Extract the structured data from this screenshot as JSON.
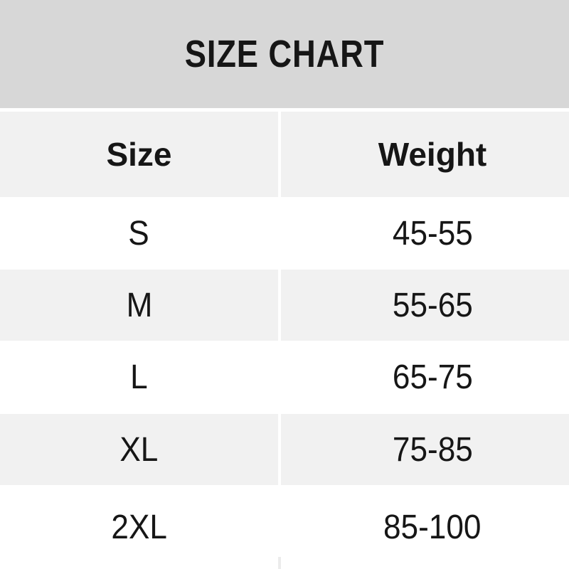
{
  "chart_data": {
    "type": "table",
    "title": "SIZE CHART",
    "columns": [
      "Size",
      "Weight"
    ],
    "rows": [
      {
        "size": "S",
        "weight": "45-55"
      },
      {
        "size": "M",
        "weight": "55-65"
      },
      {
        "size": "L",
        "weight": "65-75"
      },
      {
        "size": "XL",
        "weight": "75-85"
      },
      {
        "size": "2XL",
        "weight": "85-100"
      }
    ],
    "layout": {
      "zebra_striping": true,
      "column_divider": "white-gap"
    }
  },
  "colors": {
    "title_band_bg": "#d7d7d7",
    "alt_row_bg": "#f1f1f1",
    "base_row_bg": "#ffffff",
    "text": "#161616"
  }
}
